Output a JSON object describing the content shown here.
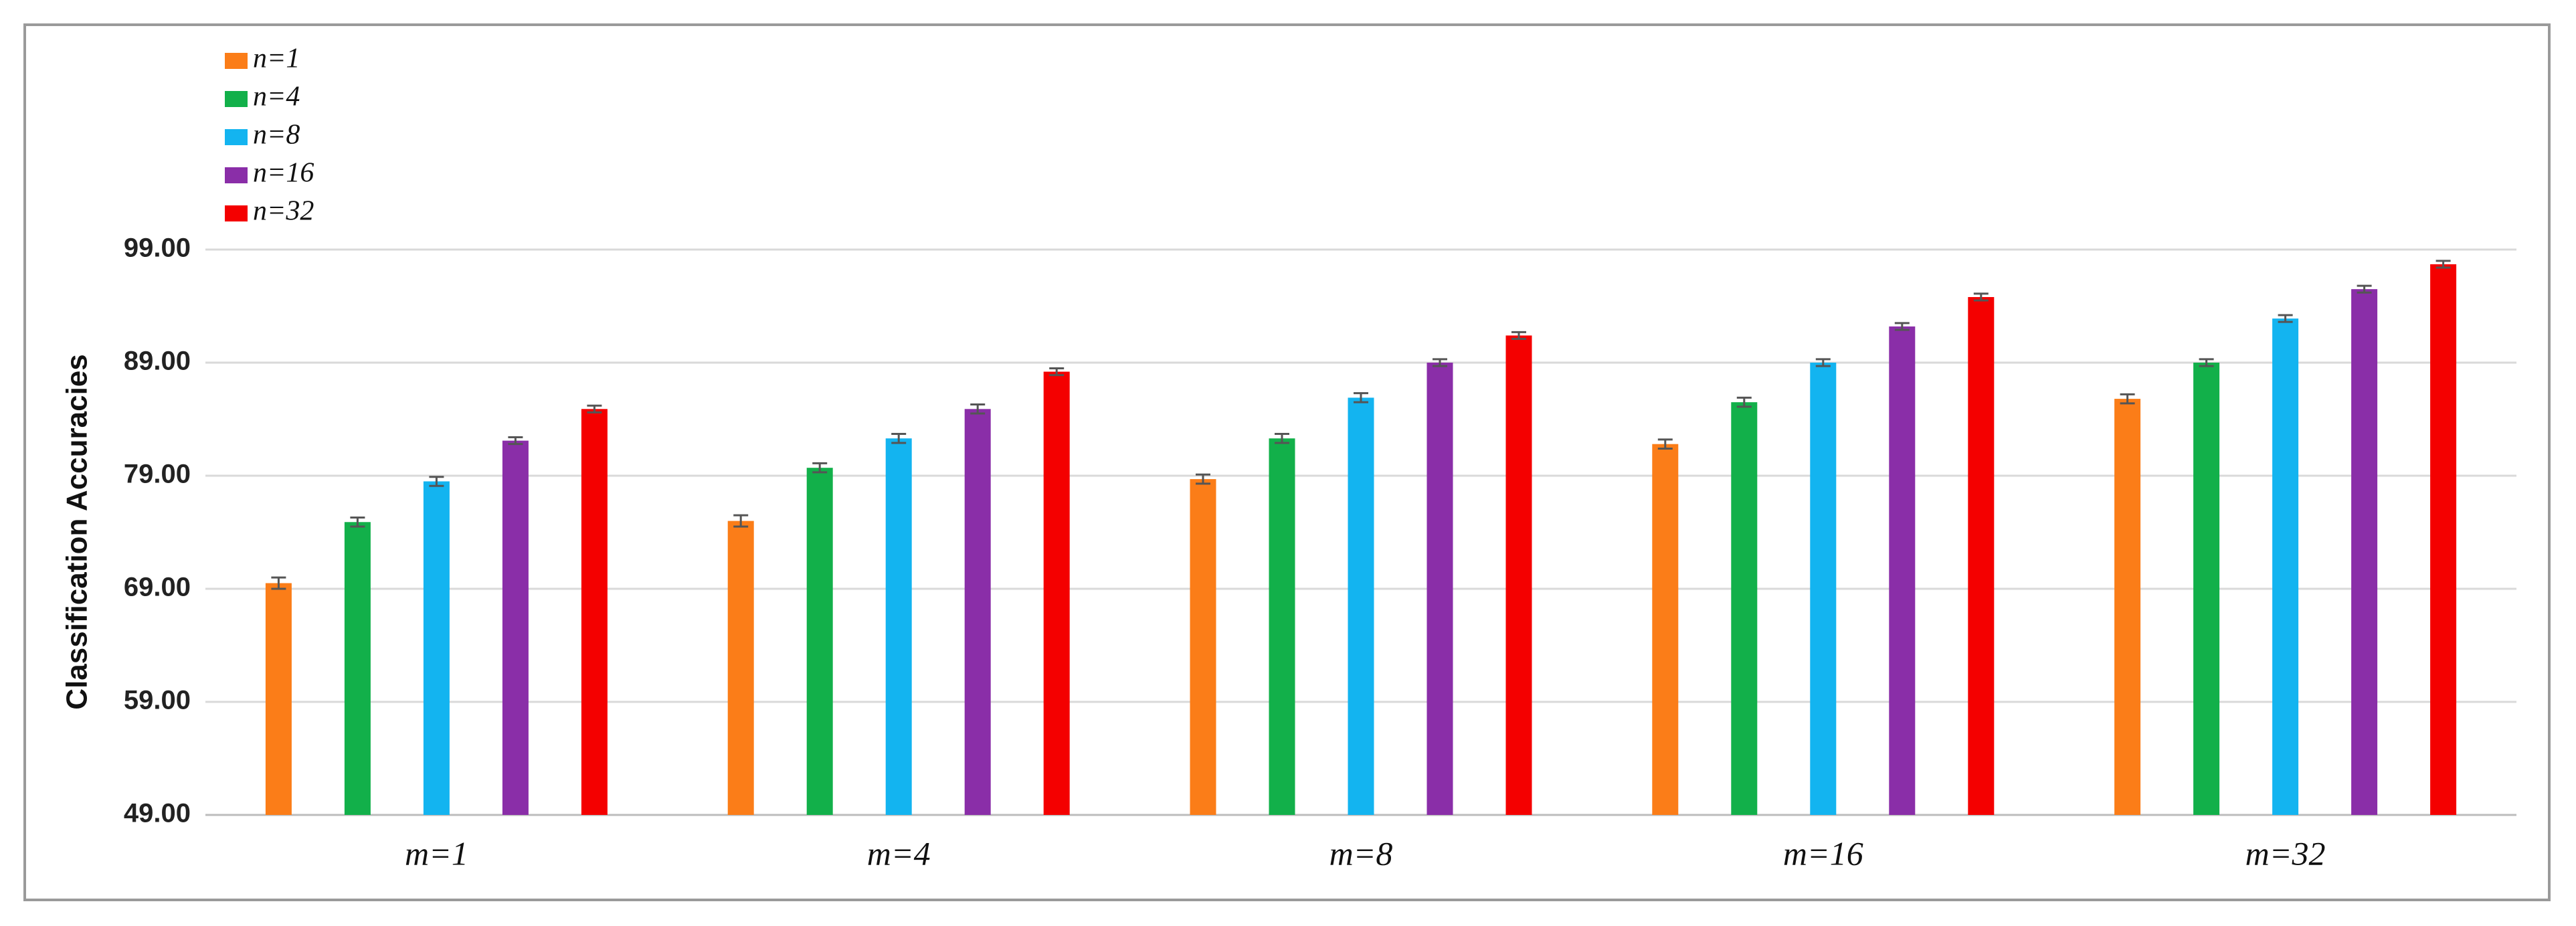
{
  "chart_data": {
    "type": "bar",
    "y_label": "Classification Accuracies",
    "categories": [
      "m=1",
      "m=4",
      "m=8",
      "m=16",
      "m=32"
    ],
    "series": [
      {
        "name": "n=1",
        "color": "#fb7d18",
        "values": [
          69.5,
          75.0,
          78.7,
          81.8,
          85.8
        ],
        "errors": [
          0.5,
          0.5,
          0.4,
          0.4,
          0.4
        ]
      },
      {
        "name": "n=4",
        "color": "#12b04a",
        "values": [
          74.9,
          79.7,
          82.3,
          85.5,
          89.0
        ],
        "errors": [
          0.4,
          0.4,
          0.4,
          0.4,
          0.3
        ]
      },
      {
        "name": "n=8",
        "color": "#13b4f0",
        "values": [
          78.5,
          82.3,
          85.9,
          89.0,
          92.9
        ],
        "errors": [
          0.4,
          0.4,
          0.4,
          0.3,
          0.3
        ]
      },
      {
        "name": "n=16",
        "color": "#8a2ea8",
        "values": [
          82.1,
          84.9,
          89.0,
          92.2,
          95.5
        ],
        "errors": [
          0.3,
          0.4,
          0.3,
          0.3,
          0.3
        ]
      },
      {
        "name": "n=32",
        "color": "#f40000",
        "values": [
          84.9,
          88.2,
          91.4,
          94.8,
          97.7
        ],
        "errors": [
          0.3,
          0.3,
          0.3,
          0.3,
          0.3
        ]
      }
    ],
    "ylim": [
      49,
      99
    ],
    "yticks": [
      {
        "value": 49,
        "label": "49.00"
      },
      {
        "value": 59,
        "label": "59.00"
      },
      {
        "value": 69,
        "label": "69.00"
      },
      {
        "value": 79,
        "label": "79.00"
      },
      {
        "value": 89,
        "label": "89.00"
      },
      {
        "value": 99,
        "label": "99.00"
      }
    ],
    "grid": true,
    "legend": "top-left"
  }
}
